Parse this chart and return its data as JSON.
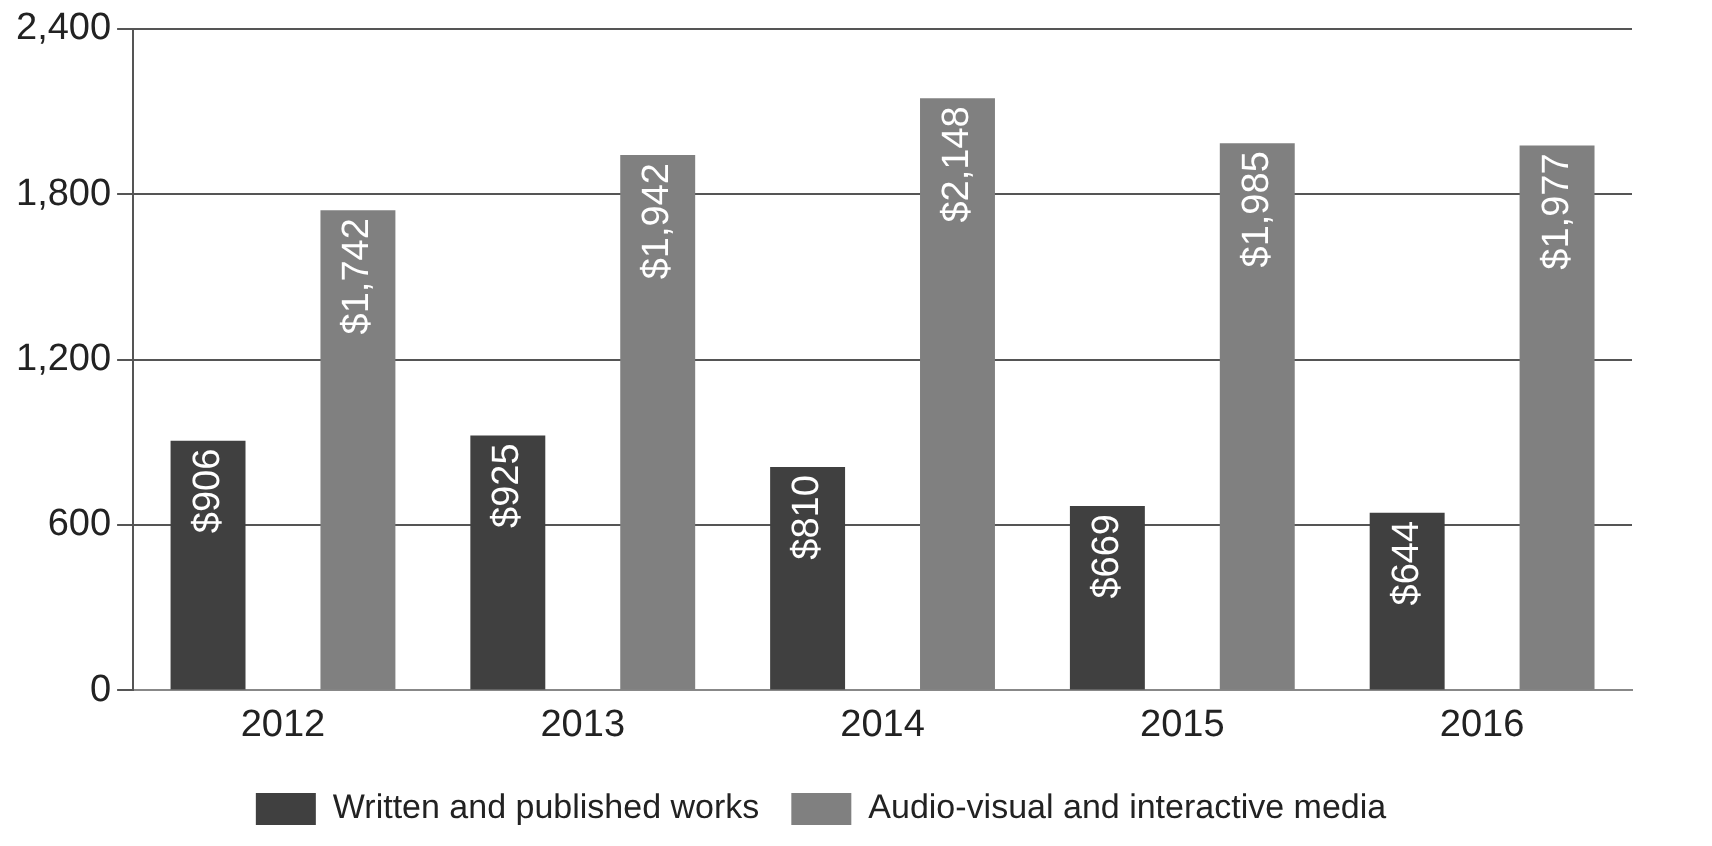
{
  "chart_data": {
    "type": "bar",
    "categories": [
      "2012",
      "2013",
      "2014",
      "2015",
      "2016"
    ],
    "series": [
      {
        "name": "Written and published works",
        "color": "#404040",
        "values": [
          906,
          925,
          810,
          669,
          644
        ],
        "value_labels": [
          "$906",
          "$925",
          "$810",
          "$669",
          "$644"
        ]
      },
      {
        "name": "Audio-visual and interactive media",
        "color": "#808080",
        "values": [
          1742,
          1942,
          2148,
          1985,
          1977
        ],
        "value_labels": [
          "$1,742",
          "$1,942",
          "$2,148",
          "$1,985",
          "$1,977"
        ]
      }
    ],
    "ylim": [
      0,
      2400
    ],
    "yticks": [
      0,
      {
        "value": 600,
        "label": "600"
      },
      {
        "value": 1200,
        "label": "1,200"
      },
      {
        "value": 1800,
        "label": "1,800"
      },
      {
        "value": 2400,
        "label": "2,400"
      }
    ],
    "grid": "y",
    "legend": "bottom"
  }
}
